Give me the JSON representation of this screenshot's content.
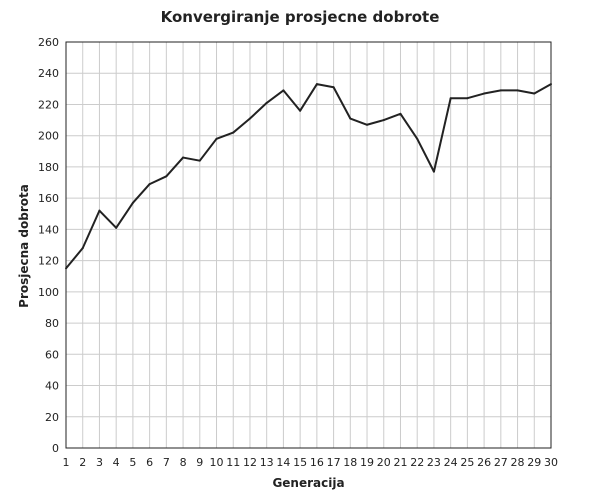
{
  "chart_data": {
    "type": "line",
    "title": "Konvergiranje prosjecne dobrote",
    "xlabel": "Generacija",
    "ylabel": "Prosjecna dobrota",
    "x": [
      1,
      2,
      3,
      4,
      5,
      6,
      7,
      8,
      9,
      10,
      11,
      12,
      13,
      14,
      15,
      16,
      17,
      18,
      19,
      20,
      21,
      22,
      23,
      24,
      25,
      26,
      27,
      28,
      29,
      30
    ],
    "series": [
      {
        "values": [
          115,
          128,
          152,
          141,
          157,
          169,
          174,
          186,
          184,
          198,
          202,
          211,
          221,
          229,
          216,
          233,
          231,
          211,
          207,
          210,
          214,
          198,
          177,
          224,
          224,
          227,
          229,
          229,
          227,
          233
        ]
      }
    ],
    "xlim": [
      1,
      30
    ],
    "ylim": [
      0,
      260
    ],
    "yticks": [
      0,
      20,
      40,
      60,
      80,
      100,
      120,
      140,
      160,
      180,
      200,
      220,
      240,
      260
    ],
    "grid": true,
    "line_color": "#222222"
  }
}
